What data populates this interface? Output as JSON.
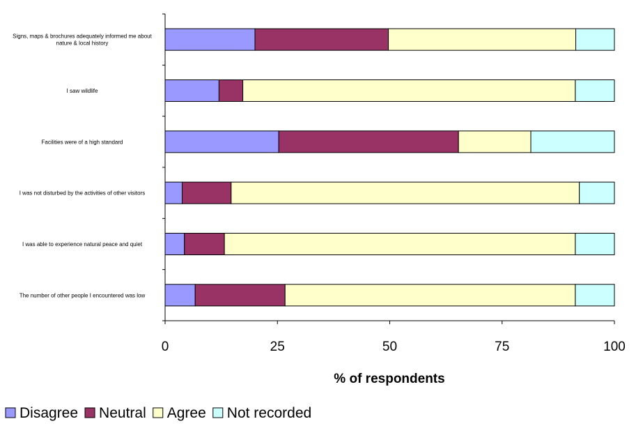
{
  "chart_data": {
    "type": "bar",
    "orientation": "horizontal",
    "stacked": true,
    "title": "",
    "xlabel": "% of respondents",
    "ylabel": "",
    "xlim": [
      0,
      100
    ],
    "xticks": [
      "0",
      "25",
      "50",
      "75",
      "100"
    ],
    "grid": false,
    "legend_position": "bottom-left",
    "categories": [
      "Signs, maps & brochures adequately informed me about nature & local history",
      "I saw wildlife",
      "Facilities were of a high standard",
      "I was not disturbed by the activities of other visitors",
      "I was able to experience natural peace and quiet",
      "The number of other people I encountered was low"
    ],
    "series": [
      {
        "name": "Disagree",
        "color": "#9999ff",
        "values": [
          20,
          12,
          25.3,
          3.8,
          4.3,
          6.7
        ]
      },
      {
        "name": "Neutral",
        "color": "#993366",
        "values": [
          29.7,
          5.3,
          40,
          10.9,
          8.9,
          20
        ]
      },
      {
        "name": "Agree",
        "color": "#ffffcc",
        "values": [
          41.7,
          74,
          16.1,
          77.5,
          78.1,
          64.6
        ]
      },
      {
        "name": "Not recorded",
        "color": "#ccffff",
        "values": [
          8.6,
          8.7,
          18.6,
          7.8,
          8.7,
          8.7
        ]
      }
    ]
  }
}
